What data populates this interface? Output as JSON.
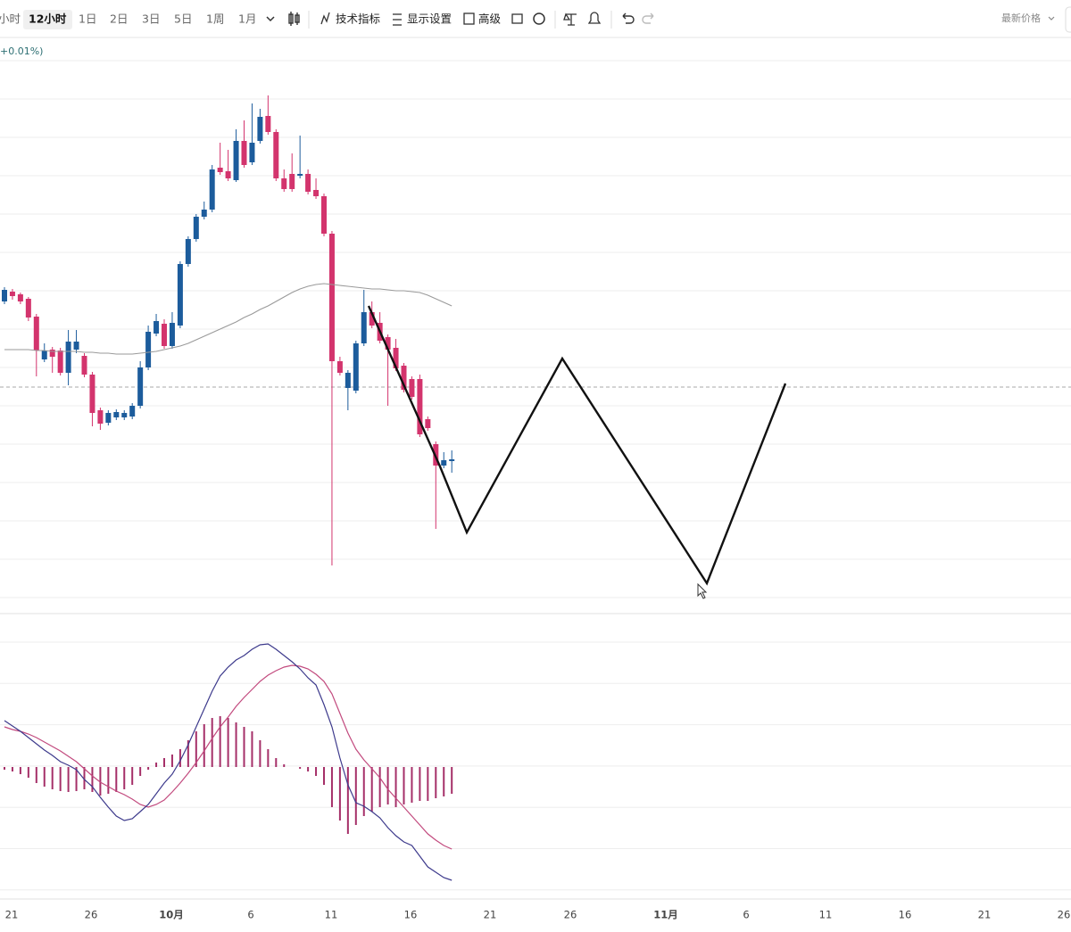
{
  "toolbar": {
    "intervals": [
      "小时",
      "12小时",
      "1日",
      "2日",
      "3日",
      "5日",
      "1周",
      "1月"
    ],
    "selected": "12小时",
    "indicators": "技术指标",
    "display": "显示设置",
    "advanced": "高级",
    "price_mode": "最新价格"
  },
  "legend": {
    "change": "+0.01%)"
  },
  "chart_data": {
    "type": "candlestick",
    "up_color": "#1c5c9c",
    "down_color": "#d3346d",
    "ylim": [
      0,
      620
    ],
    "grid": true,
    "open": [
      350,
      361,
      358,
      353,
      333,
      285,
      296,
      295,
      270,
      296,
      289,
      268,
      228,
      214,
      220,
      220,
      221,
      233,
      276,
      314,
      325,
      300,
      323,
      392,
      420,
      445,
      453,
      500,
      496,
      486,
      530,
      506,
      530,
      558,
      540,
      488,
      493,
      491,
      493,
      475,
      468,
      426,
      283,
      253,
      250,
      303,
      338,
      326,
      310,
      298,
      278,
      263,
      263,
      218,
      190,
      166,
      171
    ],
    "high": [
      366,
      364,
      360,
      355,
      336,
      303,
      299,
      298,
      318,
      318,
      292,
      271,
      231,
      228,
      229,
      228,
      236,
      283,
      323,
      336,
      330,
      338,
      395,
      423,
      448,
      462,
      503,
      528,
      520,
      543,
      553,
      572,
      566,
      581,
      543,
      498,
      516,
      536,
      498,
      488,
      471,
      429,
      288,
      273,
      306,
      363,
      350,
      338,
      313,
      308,
      281,
      266,
      268,
      221,
      193,
      181,
      183
    ],
    "low": [
      347,
      352,
      347,
      328,
      266,
      282,
      270,
      267,
      256,
      292,
      265,
      210,
      206,
      211,
      217,
      217,
      218,
      230,
      273,
      311,
      297,
      297,
      320,
      389,
      417,
      442,
      450,
      492,
      485,
      484,
      500,
      503,
      527,
      537,
      485,
      473,
      473,
      488,
      470,
      465,
      423,
      54,
      267,
      228,
      247,
      300,
      320,
      303,
      233,
      272,
      248,
      240,
      198,
      205,
      95,
      163,
      158
    ],
    "close": [
      363,
      356,
      350,
      332,
      295,
      295,
      288,
      270,
      305,
      305,
      268,
      225,
      213,
      225,
      226,
      225,
      233,
      276,
      316,
      328,
      300,
      326,
      392,
      420,
      445,
      453,
      498,
      495,
      488,
      530,
      503,
      528,
      557,
      540,
      488,
      476,
      476,
      493,
      473,
      468,
      426,
      283,
      270,
      270,
      303,
      338,
      323,
      306,
      296,
      275,
      251,
      243,
      201,
      208,
      166,
      172,
      173
    ],
    "ma": {
      "color": "#9a9a9a",
      "values": [
        296,
        296,
        296,
        296,
        295,
        295,
        294,
        294,
        294,
        294,
        293,
        293,
        292,
        292,
        291,
        291,
        291,
        292,
        293,
        294,
        296,
        298,
        300,
        303,
        307,
        311,
        315,
        319,
        323,
        327,
        332,
        336,
        341,
        345,
        350,
        355,
        360,
        364,
        367,
        369,
        370,
        369,
        368,
        367,
        366,
        365,
        364,
        364,
        363,
        362,
        362,
        361,
        360,
        357,
        353,
        349,
        345
      ]
    },
    "macd": {
      "ylim": [
        -140,
        140
      ],
      "dif": {
        "color": "#3d3a8c",
        "values": [
          52,
          46,
          40,
          33,
          26,
          19,
          13,
          6,
          2,
          -3,
          -14,
          -22,
          -34,
          -45,
          -55,
          -60,
          -58,
          -50,
          -42,
          -30,
          -18,
          -8,
          7,
          25,
          45,
          65,
          85,
          102,
          112,
          120,
          125,
          132,
          137,
          138,
          132,
          125,
          118,
          110,
          100,
          92,
          70,
          45,
          10,
          -20,
          -40,
          -44,
          -50,
          -57,
          -68,
          -77,
          -84,
          -88,
          -100,
          -112,
          -118,
          -124,
          -127
        ]
      },
      "dea": {
        "color": "#c24a7e",
        "values": [
          45,
          42,
          40,
          37,
          33,
          28,
          23,
          18,
          12,
          6,
          -2,
          -10,
          -17,
          -22,
          -27,
          -31,
          -36,
          -42,
          -45,
          -42,
          -37,
          -28,
          -18,
          -7,
          5,
          18,
          32,
          45,
          56,
          68,
          78,
          87,
          96,
          103,
          108,
          112,
          114,
          113,
          110,
          104,
          96,
          82,
          60,
          38,
          20,
          8,
          -2,
          -12,
          -25,
          -35,
          -45,
          -55,
          -65,
          -75,
          -82,
          -88,
          -92
        ]
      },
      "histogram": {
        "color": "#a52f68",
        "values": [
          -3,
          -5,
          -8,
          -12,
          -18,
          -22,
          -25,
          -27,
          -28,
          -27,
          -25,
          -28,
          -32,
          -30,
          -28,
          -25,
          -20,
          -10,
          -3,
          5,
          10,
          14,
          20,
          30,
          40,
          48,
          55,
          57,
          55,
          50,
          45,
          40,
          30,
          20,
          10,
          3,
          0,
          -2,
          -5,
          -10,
          -20,
          -45,
          -60,
          -75,
          -65,
          -55,
          -50,
          -45,
          -42,
          -45,
          -42,
          -40,
          -38,
          -38,
          -35,
          -33,
          -30
        ]
      }
    },
    "x_tick_labels": [
      "21",
      "26",
      "10月",
      "6",
      "11",
      "16",
      "21",
      "26",
      "11月",
      "6",
      "11",
      "16",
      "21",
      "26"
    ]
  }
}
